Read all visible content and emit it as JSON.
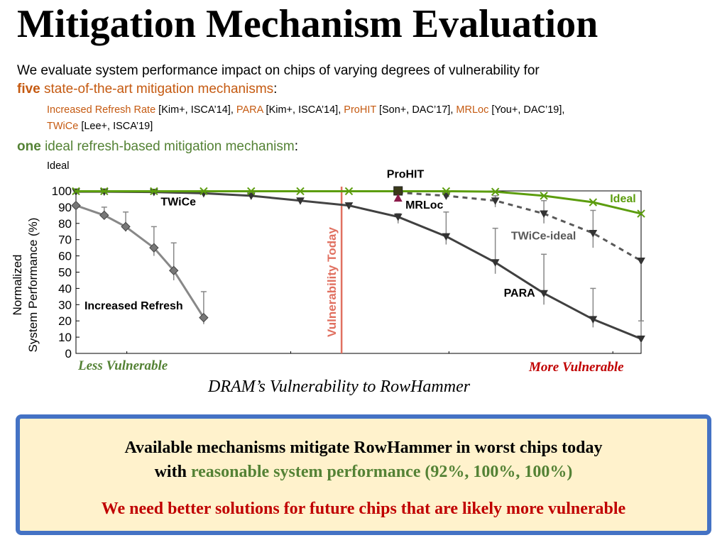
{
  "title": "Mitigation Mechanism Evaluation",
  "intro": {
    "line1": "We evaluate system performance impact on chips of varying degrees of vulnerability for",
    "five": "five",
    "five_rest": "state-of-the-art mitigation mechanisms",
    "colon": ":",
    "one": "one",
    "one_rest": "ideal refresh-based mitigation mechanism",
    "ideal_item": "Ideal"
  },
  "mechanisms": [
    {
      "name": "Increased Refresh Rate",
      "cite": " [Kim+, ISCA’14]",
      "sep": ", "
    },
    {
      "name": "PARA",
      "cite": " [Kim+, ISCA’14]",
      "sep": ", "
    },
    {
      "name": "ProHIT",
      "cite": " [Son+, DAC’17]",
      "sep": ", "
    },
    {
      "name": "MRLoc",
      "cite": " [You+, DAC’19]",
      "sep": ","
    },
    {
      "name": "TWiCe",
      "cite": " [Lee+, ISCA’19]",
      "sep": ""
    }
  ],
  "chart_data": {
    "type": "line",
    "ylabel": "Normalized System Performance (%)",
    "ylabel_line1": "Normalized",
    "ylabel_line2": "System Performance (%)",
    "xlabel": "DRAM’s Vulnerability to RowHammer",
    "ylim": [
      0,
      100
    ],
    "xlim": [
      0,
      1
    ],
    "yticks": [
      0,
      10,
      20,
      30,
      40,
      50,
      60,
      70,
      80,
      90,
      100
    ],
    "vertical_line": {
      "x": 0.47,
      "label": "Vulnerability Today",
      "color": "#e07060"
    },
    "series": [
      {
        "name": "Increased Refresh",
        "label": "Increased Refresh",
        "color": "#888888",
        "dash": false,
        "marker": "diamond",
        "points": [
          [
            0,
            91
          ],
          [
            0.05,
            85
          ],
          [
            0.088,
            78
          ],
          [
            0.138,
            65
          ],
          [
            0.173,
            51
          ],
          [
            0.226,
            22
          ]
        ],
        "errors": [
          [
            0.05,
            83,
            90
          ],
          [
            0.088,
            75,
            87
          ],
          [
            0.138,
            60,
            78
          ],
          [
            0.173,
            45,
            68
          ],
          [
            0.226,
            18,
            38
          ]
        ],
        "label_anchor": [
          0.015,
          27
        ]
      },
      {
        "name": "TWiCe",
        "label": "TWiCe",
        "color": "#444444",
        "dash": false,
        "marker": "tri-down",
        "points": [
          [
            0,
            99.5
          ],
          [
            0.05,
            99.5
          ],
          [
            0.138,
            99.3
          ],
          [
            0.226,
            98.5
          ],
          [
            0.31,
            97
          ],
          [
            0.397,
            94
          ],
          [
            0.483,
            91
          ]
        ],
        "errors": [],
        "label_anchor": [
          0.15,
          91
        ]
      },
      {
        "name": "PARA",
        "label": "PARA",
        "color": "#404040",
        "dash": false,
        "marker": "tri-down",
        "points": [
          [
            0.483,
            91
          ],
          [
            0.57,
            84
          ],
          [
            0.655,
            72
          ],
          [
            0.742,
            56
          ],
          [
            0.828,
            37
          ],
          [
            0.915,
            21
          ],
          [
            1,
            9
          ]
        ],
        "errors": [
          [
            0.57,
            80,
            86
          ],
          [
            0.655,
            67,
            87
          ],
          [
            0.742,
            49,
            77
          ],
          [
            0.828,
            30,
            61
          ],
          [
            0.915,
            16,
            40
          ],
          [
            1,
            8,
            20
          ]
        ],
        "label_anchor": [
          0.757,
          35
        ]
      },
      {
        "name": "TWiCe-ideal",
        "label": "TWiCe-ideal",
        "color": "#595959",
        "dash": true,
        "marker": "tri-down",
        "points": [
          [
            0.57,
            99
          ],
          [
            0.655,
            97
          ],
          [
            0.742,
            94
          ],
          [
            0.828,
            86
          ],
          [
            0.915,
            74
          ],
          [
            1,
            57
          ]
        ],
        "errors": [
          [
            0.742,
            90,
            97
          ],
          [
            0.828,
            80,
            94
          ],
          [
            0.915,
            65,
            88
          ]
        ],
        "label_anchor": [
          0.77,
          70
        ]
      },
      {
        "name": "Ideal",
        "label": "Ideal",
        "color": "#5c9d0e",
        "dash": false,
        "marker": "x",
        "points": [
          [
            0,
            99.8
          ],
          [
            0.05,
            99.8
          ],
          [
            0.138,
            99.8
          ],
          [
            0.226,
            99.8
          ],
          [
            0.31,
            99.8
          ],
          [
            0.397,
            99.8
          ],
          [
            0.483,
            99.8
          ],
          [
            0.57,
            99.8
          ],
          [
            0.655,
            99.8
          ],
          [
            0.742,
            99.5
          ],
          [
            0.828,
            97
          ],
          [
            0.915,
            93
          ],
          [
            1,
            86
          ]
        ],
        "errors": [],
        "label_anchor": [
          0.945,
          93
        ]
      }
    ],
    "annotations": [
      {
        "text": "ProHIT",
        "x": 0.55,
        "y": 108
      },
      {
        "text": "MRLoc",
        "x": 0.583,
        "y": 89
      }
    ],
    "prohit_point": [
      0.57,
      100
    ],
    "mrloc_point": [
      0.57,
      96
    ]
  },
  "x_ends": {
    "less": "Less Vulnerable",
    "more": "More Vulnerable"
  },
  "summary": {
    "line1": "Available mechanisms mitigate RowHammer in worst chips today",
    "with": "with",
    "highlight": "reasonable system performance (92%, 100%, 100%)",
    "line3": "We need better solutions for future chips that are likely more vulnerable"
  },
  "colors": {
    "orange": "#c55a11",
    "green": "#548235",
    "red": "#c00000",
    "border": "#4472c4",
    "box_bg": "#fff2cc"
  }
}
